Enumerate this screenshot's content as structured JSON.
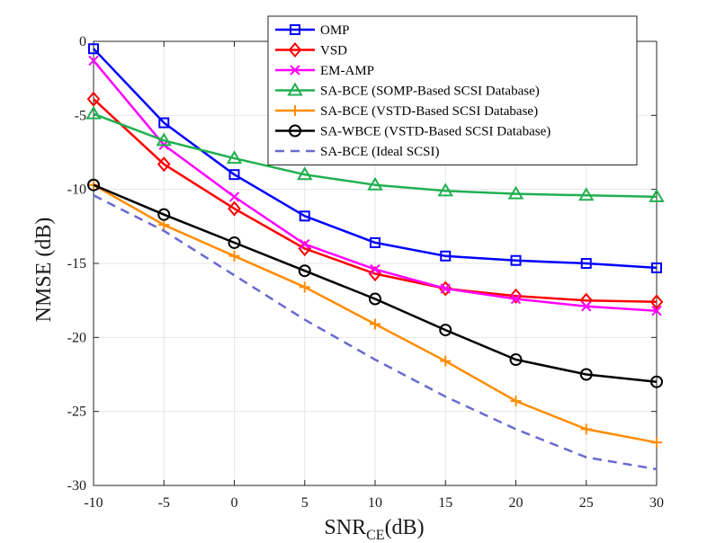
{
  "chart_data": {
    "type": "line",
    "title": "",
    "xlabel_main": "SNR",
    "xlabel_sub": "CE",
    "xlabel_unit": "(dB)",
    "ylabel": "NMSE (dB)",
    "xlim": [
      -10,
      30
    ],
    "ylim": [
      -30,
      0
    ],
    "x": [
      -10,
      -5,
      0,
      5,
      10,
      15,
      20,
      25,
      30
    ],
    "xticks": [
      "-10",
      "-5",
      "0",
      "5",
      "10",
      "15",
      "20",
      "25",
      "30"
    ],
    "yticks": [
      "0",
      "-5",
      "-10",
      "-15",
      "-20",
      "-25",
      "-30"
    ],
    "grid": true,
    "legend_position": "top-right",
    "series": [
      {
        "name": "OMP",
        "color": "#0000ff",
        "marker": "square",
        "dash": false,
        "values": [
          -0.5,
          -5.5,
          -9.0,
          -11.8,
          -13.6,
          -14.5,
          -14.8,
          -15.0,
          -15.3
        ]
      },
      {
        "name": "VSD",
        "color": "#ff0000",
        "marker": "diamond",
        "dash": false,
        "values": [
          -3.9,
          -8.3,
          -11.3,
          -14.0,
          -15.7,
          -16.7,
          -17.2,
          -17.5,
          -17.6
        ]
      },
      {
        "name": "EM-AMP",
        "color": "#ff00ff",
        "marker": "x",
        "dash": false,
        "values": [
          -1.3,
          -7.0,
          -10.5,
          -13.7,
          -15.4,
          -16.7,
          -17.4,
          -17.9,
          -18.2
        ]
      },
      {
        "name": "SA-BCE (SOMP-Based SCSI Database)",
        "color": "#20b050",
        "marker": "triangle",
        "dash": false,
        "values": [
          -4.9,
          -6.7,
          -7.9,
          -9.0,
          -9.7,
          -10.1,
          -10.3,
          -10.4,
          -10.5
        ]
      },
      {
        "name": "SA-BCE (VSTD-Based SCSI Database)",
        "color": "#ff8c00",
        "marker": "plus",
        "dash": false,
        "values": [
          -9.7,
          -12.4,
          -14.5,
          -16.6,
          -19.1,
          -21.6,
          -24.3,
          -26.2,
          -27.1
        ]
      },
      {
        "name": "SA-WBCE (VSTD-Based SCSI Database)",
        "color": "#000000",
        "marker": "circle",
        "dash": false,
        "values": [
          -9.7,
          -11.7,
          -13.6,
          -15.5,
          -17.4,
          -19.5,
          -21.5,
          -22.5,
          -23.0
        ]
      },
      {
        "name": "SA-BCE (Ideal SCSI)",
        "color": "#6a6ad0",
        "marker": "none",
        "dash": true,
        "values": [
          -10.4,
          -12.8,
          -15.8,
          -18.8,
          -21.5,
          -24.0,
          -26.2,
          -28.1,
          -28.9
        ]
      }
    ]
  }
}
